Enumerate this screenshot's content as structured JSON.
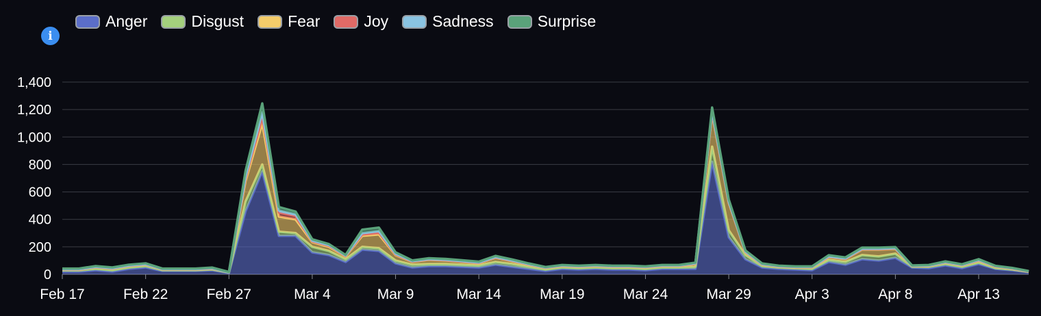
{
  "info": {
    "glyph": "i"
  },
  "legend": [
    {
      "label": "Anger",
      "color": "#5b6ec9"
    },
    {
      "label": "Disgust",
      "color": "#a4d07d"
    },
    {
      "label": "Fear",
      "color": "#f4cc6a"
    },
    {
      "label": "Joy",
      "color": "#e06a66"
    },
    {
      "label": "Sadness",
      "color": "#8ac4e2"
    },
    {
      "label": "Surprise",
      "color": "#5aa27a"
    }
  ],
  "chart_data": {
    "type": "area",
    "stacked": true,
    "x_start": "2025-02-17",
    "x_labels": [
      "Feb 17",
      "Feb 22",
      "Feb 27",
      "Mar 4",
      "Mar 9",
      "Mar 14",
      "Mar 19",
      "Mar 24",
      "Mar 29",
      "Apr 3",
      "Apr 8",
      "Apr 13"
    ],
    "y_ticks": [
      "0",
      "200",
      "400",
      "600",
      "800",
      "1,000",
      "1,200",
      "1,400"
    ],
    "ylim": [
      0,
      1400
    ],
    "grid": true,
    "legend_position": "top-left",
    "series": [
      {
        "name": "Anger",
        "values": [
          20,
          20,
          30,
          20,
          40,
          50,
          25,
          25,
          25,
          30,
          10,
          460,
          750,
          280,
          280,
          160,
          140,
          90,
          180,
          170,
          80,
          50,
          60,
          60,
          55,
          50,
          70,
          55,
          40,
          25,
          40,
          35,
          40,
          35,
          35,
          30,
          40,
          40,
          40,
          820,
          270,
          110,
          50,
          40,
          35,
          30,
          90,
          70,
          110,
          100,
          120,
          50,
          45,
          65,
          45,
          75,
          40,
          30,
          15
        ]
      },
      {
        "name": "Disgust",
        "values": [
          8,
          8,
          10,
          10,
          10,
          10,
          5,
          5,
          5,
          5,
          3,
          70,
          50,
          30,
          20,
          40,
          30,
          20,
          20,
          20,
          20,
          20,
          15,
          15,
          15,
          15,
          20,
          20,
          15,
          10,
          10,
          10,
          10,
          10,
          10,
          10,
          10,
          10,
          15,
          110,
          50,
          30,
          10,
          10,
          10,
          10,
          15,
          20,
          30,
          30,
          30,
          5,
          10,
          10,
          10,
          10,
          5,
          5,
          3
        ]
      },
      {
        "name": "Fear",
        "values": [
          5,
          5,
          10,
          10,
          10,
          10,
          5,
          5,
          5,
          5,
          2,
          150,
          300,
          110,
          100,
          35,
          30,
          20,
          80,
          100,
          40,
          20,
          30,
          25,
          20,
          15,
          30,
          20,
          15,
          10,
          10,
          10,
          10,
          10,
          10,
          10,
          10,
          10,
          20,
          240,
          200,
          20,
          10,
          5,
          5,
          10,
          20,
          20,
          40,
          50,
          35,
          5,
          5,
          10,
          10,
          15,
          10,
          5,
          2
        ]
      },
      {
        "name": "Joy",
        "values": [
          2,
          2,
          2,
          2,
          2,
          2,
          2,
          2,
          2,
          2,
          0,
          20,
          50,
          30,
          25,
          5,
          8,
          3,
          10,
          15,
          5,
          3,
          3,
          3,
          3,
          3,
          3,
          3,
          2,
          2,
          2,
          2,
          2,
          2,
          2,
          2,
          2,
          2,
          3,
          10,
          5,
          3,
          2,
          2,
          2,
          2,
          3,
          3,
          3,
          3,
          3,
          1,
          2,
          2,
          2,
          2,
          2,
          2,
          1
        ]
      },
      {
        "name": "Sadness",
        "values": [
          2,
          2,
          2,
          2,
          2,
          2,
          1,
          1,
          1,
          2,
          0,
          15,
          30,
          15,
          12,
          5,
          5,
          3,
          10,
          10,
          5,
          3,
          3,
          3,
          3,
          3,
          3,
          3,
          2,
          2,
          2,
          2,
          2,
          2,
          2,
          2,
          2,
          2,
          2,
          10,
          5,
          3,
          2,
          2,
          2,
          2,
          3,
          3,
          3,
          3,
          3,
          1,
          2,
          2,
          2,
          2,
          2,
          2,
          1
        ]
      },
      {
        "name": "Surprise",
        "values": [
          5,
          5,
          6,
          6,
          6,
          6,
          4,
          4,
          4,
          5,
          2,
          40,
          65,
          25,
          20,
          10,
          7,
          5,
          25,
          25,
          10,
          5,
          6,
          6,
          6,
          6,
          8,
          7,
          5,
          4,
          4,
          4,
          4,
          4,
          4,
          4,
          4,
          4,
          5,
          25,
          15,
          8,
          5,
          4,
          4,
          4,
          8,
          7,
          8,
          8,
          7,
          3,
          4,
          5,
          4,
          6,
          3,
          3,
          2
        ]
      }
    ]
  }
}
